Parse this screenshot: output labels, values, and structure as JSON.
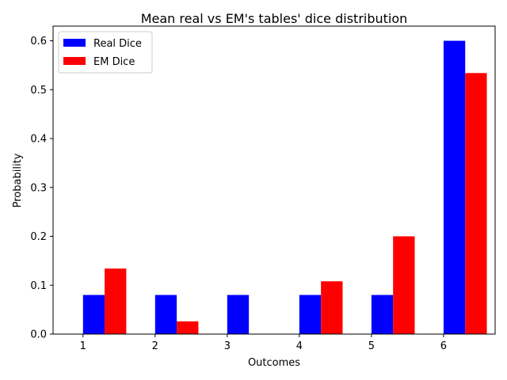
{
  "chart_data": {
    "type": "bar",
    "title": "Mean real vs EM's tables' dice distribution",
    "xlabel": "Outcomes",
    "ylabel": "Probability",
    "categories": [
      "1",
      "2",
      "3",
      "4",
      "5",
      "6"
    ],
    "series": [
      {
        "name": "Real Dice",
        "color": "#0000ff",
        "values": [
          0.08,
          0.08,
          0.08,
          0.08,
          0.08,
          0.6
        ]
      },
      {
        "name": "EM Dice",
        "color": "#ff0000",
        "values": [
          0.134,
          0.026,
          0.0,
          0.108,
          0.2,
          0.534
        ]
      }
    ],
    "ylim": [
      0,
      0.63
    ],
    "yticks": [
      "0.0",
      "0.1",
      "0.2",
      "0.3",
      "0.4",
      "0.5",
      "0.6"
    ],
    "legend": "top-left",
    "grid": false
  }
}
